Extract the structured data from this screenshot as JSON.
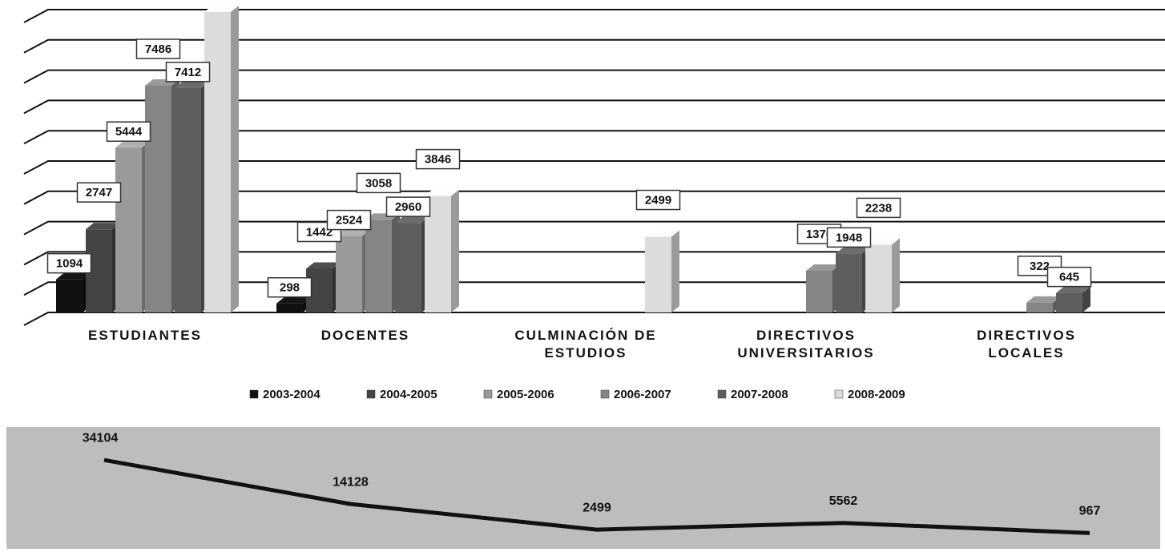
{
  "chart_data": [
    {
      "type": "bar3d",
      "categories": [
        "ESTUDIANTES",
        "DOCENTES",
        "CULMINACIÓN DE\nESTUDIOS",
        "DIRECTIVOS\nUNIVERSITARIOS",
        "DIRECTIVOS\nLOCALES"
      ],
      "series": [
        {
          "name": "2003-2004",
          "color": "#111111",
          "values": [
            1094,
            298,
            null,
            null,
            null
          ]
        },
        {
          "name": "2004-2005",
          "color": "#444444",
          "values": [
            2747,
            1442,
            null,
            null,
            null
          ]
        },
        {
          "name": "2005-2006",
          "color": "#9a9a9a",
          "values": [
            5444,
            2524,
            null,
            null,
            null
          ]
        },
        {
          "name": "2006-2007",
          "color": "#858585",
          "values": [
            7486,
            3058,
            null,
            1376,
            322
          ]
        },
        {
          "name": "2007-2008",
          "color": "#5e5e5e",
          "values": [
            7412,
            2960,
            null,
            1948,
            645
          ]
        },
        {
          "name": "2008-2009",
          "color": "#dcdcdc",
          "values": [
            9921,
            3846,
            2499,
            2238,
            null
          ]
        }
      ],
      "ylim": [
        0,
        10000
      ],
      "yticks": [
        0,
        1000,
        2000,
        3000,
        4000,
        5000,
        6000,
        7000,
        8000,
        9000,
        10000
      ],
      "grid": true
    },
    {
      "type": "line",
      "color": "#111111",
      "values": [
        34104,
        14128,
        2499,
        5562,
        967
      ],
      "ylim": [
        0,
        40000
      ]
    }
  ]
}
